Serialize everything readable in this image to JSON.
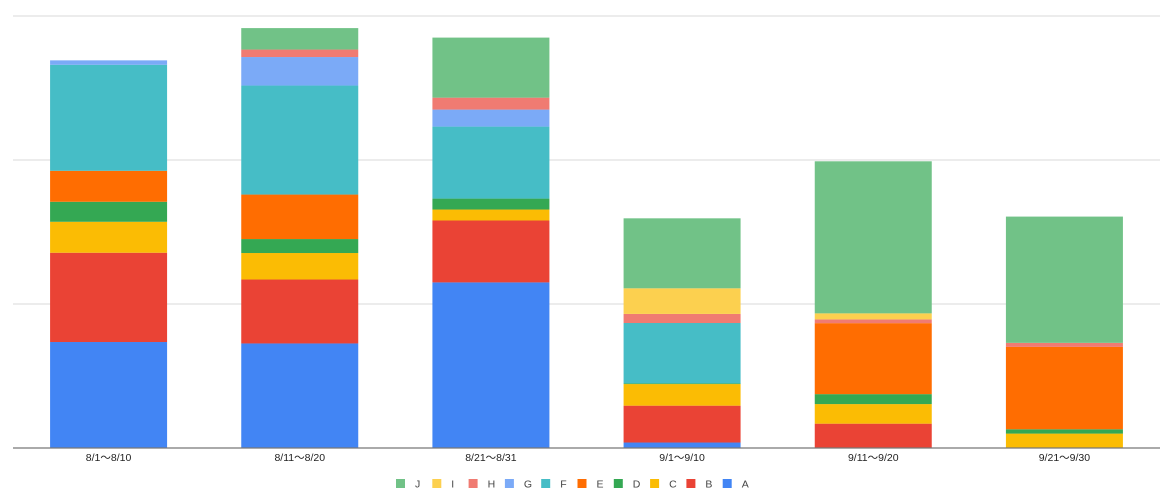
{
  "chart_data": {
    "type": "bar",
    "stacked": true,
    "title": "",
    "xlabel": "",
    "ylabel": "",
    "ylim": [
      0,
      30
    ],
    "grid": true,
    "y_gridlines": [
      0,
      10,
      20,
      30
    ],
    "legend_position": "bottom",
    "categories": [
      "8/1〜8/10",
      "8/11〜8/20",
      "8/21〜8/31",
      "9/1〜9/10",
      "9/11〜9/20",
      "9/21〜9/30"
    ],
    "series": [
      {
        "name": "A",
        "color": "#4285f4",
        "values": [
          7.36,
          7.26,
          11.5,
          0.38,
          0,
          0
        ]
      },
      {
        "name": "B",
        "color": "#ea4335",
        "values": [
          6.2,
          4.44,
          4.3,
          2.56,
          1.69,
          0
        ]
      },
      {
        "name": "C",
        "color": "#fbbc04",
        "values": [
          2.15,
          1.84,
          0.76,
          1.5,
          1.36,
          1.0
        ]
      },
      {
        "name": "D",
        "color": "#34a853",
        "values": [
          1.39,
          0.97,
          0.76,
          0.05,
          0.69,
          0.3
        ]
      },
      {
        "name": "E",
        "color": "#ff6d01",
        "values": [
          2.15,
          3.09,
          0,
          0,
          4.93,
          5.72
        ]
      },
      {
        "name": "F",
        "color": "#46bdc6",
        "values": [
          7.36,
          7.57,
          5.0,
          4.19,
          0,
          0
        ]
      },
      {
        "name": "G",
        "color": "#7baaf7",
        "values": [
          0.31,
          1.98,
          1.18,
          0,
          0,
          0
        ]
      },
      {
        "name": "H",
        "color": "#f07b72",
        "values": [
          0,
          0.52,
          0.83,
          0.63,
          0.26,
          0.28
        ]
      },
      {
        "name": "I",
        "color": "#fcd04f",
        "values": [
          0,
          0,
          0,
          1.78,
          0.42,
          0
        ]
      },
      {
        "name": "J",
        "color": "#71c287",
        "values": [
          0,
          1.49,
          4.17,
          4.86,
          10.56,
          8.77
        ]
      }
    ]
  }
}
